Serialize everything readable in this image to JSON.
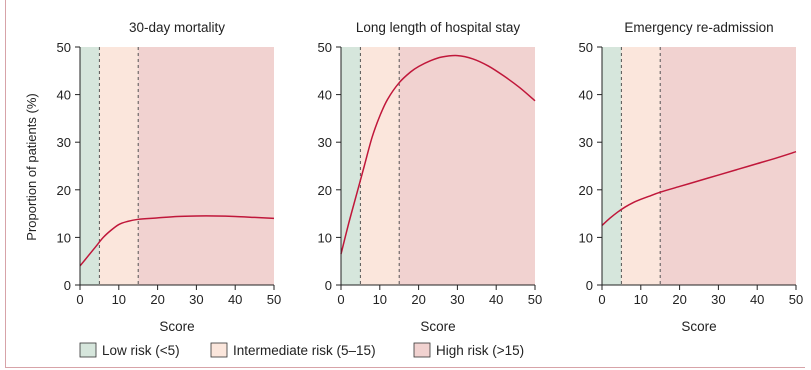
{
  "figure": {
    "ylabel": "Proportion of patients (%)",
    "colors": {
      "low": "#d6e6dc",
      "intermediate": "#fbe6dc",
      "high": "#f1d2d0",
      "curve": "#c0173a",
      "axis": "#222222",
      "divider": "#555555"
    },
    "legend": [
      {
        "key": "low",
        "label": "Low risk (<5)"
      },
      {
        "key": "intermediate",
        "label": "Intermediate risk (5–15)"
      },
      {
        "key": "high",
        "label": "High risk (>15)"
      }
    ]
  },
  "chart_data": [
    {
      "type": "line",
      "title": "30-day mortality",
      "xlabel": "Score",
      "ylabel": "Proportion of patients (%)",
      "xlim": [
        0,
        50
      ],
      "ylim": [
        0,
        50
      ],
      "xticks": [
        0,
        10,
        20,
        30,
        40,
        50
      ],
      "yticks": [
        0,
        10,
        20,
        30,
        40,
        50
      ],
      "risk_bands": [
        [
          0,
          5
        ],
        [
          5,
          15
        ],
        [
          15,
          50
        ]
      ],
      "dividers": [
        5,
        15
      ],
      "x": [
        0,
        2,
        4,
        6,
        8,
        10,
        12,
        15,
        20,
        25,
        30,
        35,
        40,
        45,
        50
      ],
      "y": [
        4,
        6,
        8,
        10,
        11.5,
        12.7,
        13.3,
        13.8,
        14.1,
        14.4,
        14.5,
        14.5,
        14.4,
        14.2,
        14
      ]
    },
    {
      "type": "line",
      "title": "Long length of hospital stay",
      "xlabel": "Score",
      "ylabel": "",
      "xlim": [
        0,
        50
      ],
      "ylim": [
        0,
        50
      ],
      "xticks": [
        0,
        10,
        20,
        30,
        40,
        50
      ],
      "yticks": [
        0,
        10,
        20,
        30,
        40,
        50
      ],
      "risk_bands": [
        [
          0,
          5
        ],
        [
          5,
          15
        ],
        [
          15,
          50
        ]
      ],
      "dividers": [
        5,
        15
      ],
      "x": [
        0,
        2,
        4,
        6,
        8,
        10,
        12,
        15,
        18,
        20,
        23,
        26,
        30,
        34,
        38,
        42,
        46,
        50
      ],
      "y": [
        6.5,
        13,
        19,
        25,
        31,
        35.5,
        39,
        42.5,
        44.8,
        45.9,
        47.1,
        47.9,
        48.2,
        47.5,
        46,
        43.9,
        41.5,
        38.7
      ]
    },
    {
      "type": "line",
      "title": "Emergency re-admission",
      "xlabel": "Score",
      "ylabel": "",
      "xlim": [
        0,
        50
      ],
      "ylim": [
        0,
        50
      ],
      "xticks": [
        0,
        10,
        20,
        30,
        40,
        50
      ],
      "yticks": [
        0,
        10,
        20,
        30,
        40,
        50
      ],
      "risk_bands": [
        [
          0,
          5
        ],
        [
          5,
          15
        ],
        [
          15,
          50
        ]
      ],
      "dividers": [
        5,
        15
      ],
      "x": [
        0,
        2,
        4,
        6,
        8,
        10,
        12,
        15,
        20,
        25,
        30,
        35,
        40,
        45,
        50
      ],
      "y": [
        12.5,
        14,
        15.3,
        16.4,
        17.3,
        18,
        18.6,
        19.5,
        20.7,
        21.9,
        23.1,
        24.3,
        25.5,
        26.7,
        28
      ]
    }
  ]
}
